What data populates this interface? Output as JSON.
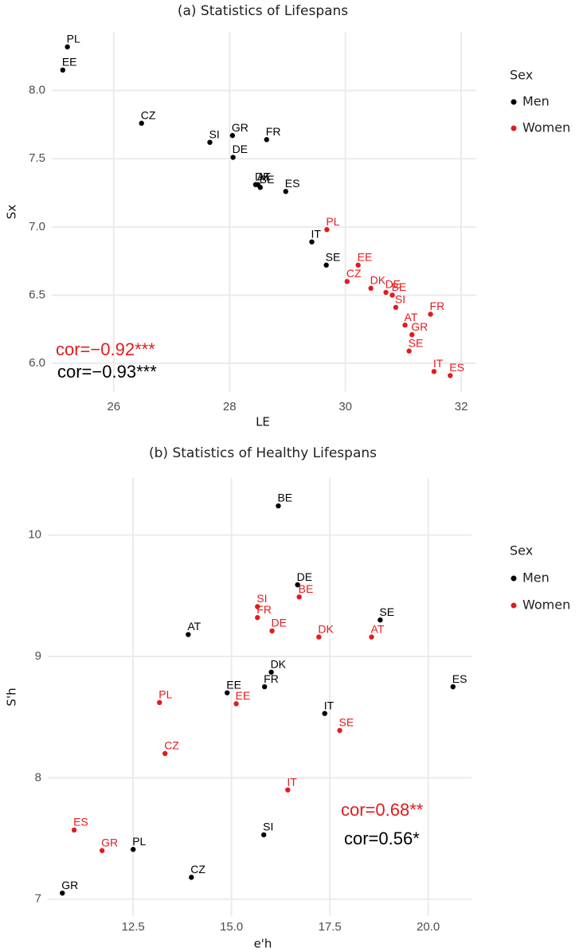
{
  "chart_data": [
    {
      "type": "scatter",
      "title": "(a) Statistics of Lifespans",
      "x_label": "LE",
      "y_label": "Sx",
      "xlim": [
        24.93,
        32.26
      ],
      "ylim": [
        5.79,
        8.43
      ],
      "xticks": [
        26,
        28,
        30,
        32
      ],
      "yticks": [
        {
          "value": 6,
          "label": "6.0"
        },
        6.5,
        {
          "value": 7,
          "label": "7.0"
        },
        7.5,
        {
          "value": 8,
          "label": "8.0"
        }
      ],
      "grid": true,
      "legend_title": "Sex",
      "series": [
        {
          "name": "Men",
          "color": "#000000",
          "labels": [
            "PL",
            "EE",
            "CZ",
            "SI",
            "GR",
            "FR",
            "DE",
            "DK",
            "AT",
            "BE",
            "ES",
            "IT",
            "SE"
          ],
          "x": [
            25.2,
            25.12,
            26.48,
            27.66,
            28.05,
            28.64,
            28.06,
            28.45,
            28.49,
            28.53,
            28.97,
            29.42,
            29.67
          ],
          "values": [
            8.32,
            8.15,
            7.76,
            7.62,
            7.67,
            7.64,
            7.51,
            7.31,
            7.31,
            7.29,
            7.26,
            6.89,
            6.72
          ]
        },
        {
          "name": "Women",
          "color": "#e41a1c",
          "labels": [
            "PL",
            "EE",
            "CZ",
            "DK",
            "DE",
            "BE",
            "SI",
            "FR",
            "AT",
            "GR",
            "SE",
            "IT",
            "ES"
          ],
          "x": [
            29.68,
            30.22,
            30.03,
            30.44,
            30.7,
            30.81,
            30.87,
            31.47,
            31.03,
            31.15,
            31.1,
            31.53,
            31.81
          ],
          "values": [
            6.98,
            6.72,
            6.6,
            6.55,
            6.52,
            6.5,
            6.41,
            6.36,
            6.28,
            6.21,
            6.09,
            5.94,
            5.91
          ]
        }
      ],
      "annotations": [
        {
          "text": "cor=−0.92***",
          "color": "#e41a1c"
        },
        {
          "text": "cor=−0.93***",
          "color": "#000000"
        }
      ]
    },
    {
      "type": "scatter",
      "title": "(b) Statistics of Healthy Lifespans",
      "x_label": "e'h",
      "y_label": "S'h",
      "xlim": [
        10.33,
        21.1
      ],
      "ylim": [
        6.86,
        10.47
      ],
      "xticks": [
        12.5,
        {
          "value": 15,
          "label": "15.0"
        },
        17.5,
        {
          "value": 20,
          "label": "20.0"
        }
      ],
      "yticks": [
        7,
        8,
        9,
        10
      ],
      "grid": true,
      "legend_title": "Sex",
      "series": [
        {
          "name": "Men",
          "color": "#000000",
          "labels": [
            "BE",
            "DE",
            "SE",
            "AT",
            "DK",
            "EE",
            "FR",
            "ES",
            "IT",
            "SI",
            "PL",
            "CZ",
            "GR"
          ],
          "x": [
            16.19,
            16.68,
            18.78,
            13.9,
            16.01,
            14.89,
            15.84,
            20.63,
            17.37,
            15.82,
            12.5,
            13.98,
            10.7
          ],
          "values": [
            10.24,
            9.59,
            9.3,
            9.18,
            8.87,
            8.7,
            8.75,
            8.75,
            8.53,
            7.53,
            7.41,
            7.18,
            7.05
          ]
        },
        {
          "name": "Women",
          "color": "#e41a1c",
          "labels": [
            "SI",
            "FR",
            "BE",
            "DE",
            "DK",
            "AT",
            "PL",
            "EE",
            "SE",
            "CZ",
            "IT",
            "ES",
            "GR"
          ],
          "x": [
            15.66,
            15.66,
            16.72,
            16.03,
            17.22,
            18.56,
            13.17,
            15.12,
            17.75,
            13.31,
            16.43,
            11.0,
            11.71
          ],
          "values": [
            9.41,
            9.32,
            9.49,
            9.21,
            9.16,
            9.16,
            8.62,
            8.61,
            8.39,
            8.2,
            7.9,
            7.57,
            7.4
          ]
        }
      ],
      "annotations": [
        {
          "text": "cor=0.68**",
          "color": "#e41a1c"
        },
        {
          "text": "cor=0.56*",
          "color": "#000000"
        }
      ]
    }
  ]
}
